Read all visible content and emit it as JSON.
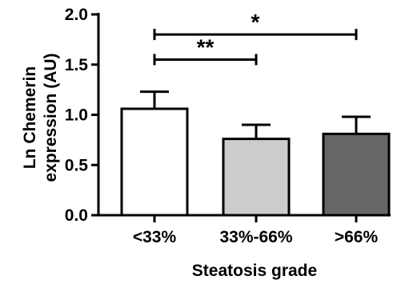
{
  "chart_data": {
    "type": "bar",
    "categories": [
      "<33%",
      "33%-66%",
      ">66%"
    ],
    "values": [
      1.06,
      0.76,
      0.81
    ],
    "errors": [
      0.17,
      0.14,
      0.17
    ],
    "bar_colors": [
      "#ffffff",
      "#cccccc",
      "#666666"
    ],
    "ylabel_lines": [
      "Ln Chemerin",
      "expression (AU)"
    ],
    "xlabel": "Steatosis grade",
    "ylim": [
      0.0,
      2.0
    ],
    "yticks": [
      0.0,
      0.5,
      1.0,
      1.5,
      2.0
    ],
    "ytick_labels": [
      "0.0",
      "0.5",
      "1.0",
      "1.5",
      "2.0"
    ],
    "grid": false,
    "significance": [
      {
        "from": "<33%",
        "to": "33%-66%",
        "label": "**",
        "y": 1.55
      },
      {
        "from": "<33%",
        "to": ">66%",
        "label": "*",
        "y": 1.8
      }
    ]
  }
}
